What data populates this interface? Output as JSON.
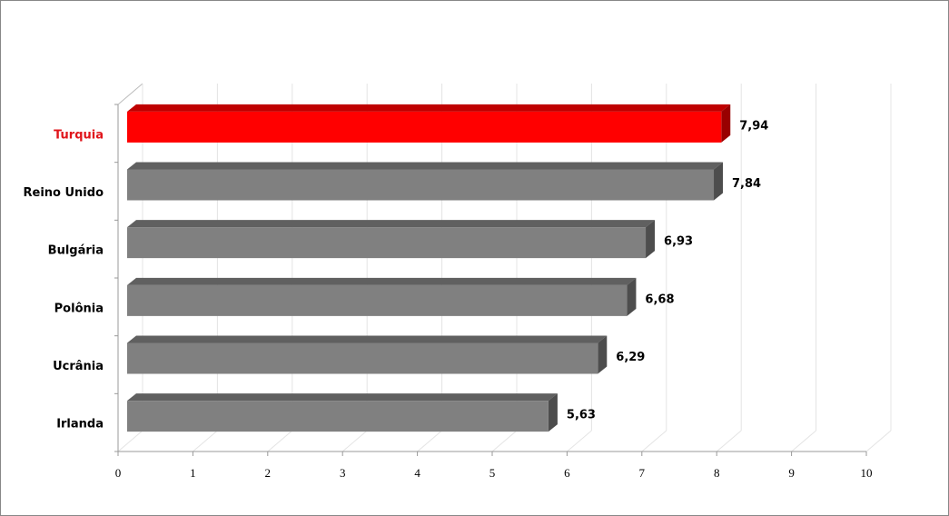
{
  "chart_data": {
    "type": "bar",
    "orientation": "horizontal",
    "categories": [
      "Turquia",
      "Reino Unido",
      "Bulgária",
      "Polônia",
      "Ucrânia",
      "Irlanda"
    ],
    "values": [
      7.94,
      7.84,
      6.93,
      6.68,
      6.29,
      5.63
    ],
    "value_labels": [
      "7,94",
      "7,84",
      "6,93",
      "6,68",
      "6,29",
      "5,63"
    ],
    "colors": [
      "#ff0000",
      "#808080",
      "#808080",
      "#808080",
      "#808080",
      "#808080"
    ],
    "label_colors": [
      "#e0151b",
      "#000000",
      "#000000",
      "#000000",
      "#000000",
      "#000000"
    ],
    "xlim": [
      0,
      10
    ],
    "xticks": [
      0,
      1,
      2,
      3,
      4,
      5,
      6,
      7,
      8,
      9,
      10
    ],
    "grid": true
  }
}
